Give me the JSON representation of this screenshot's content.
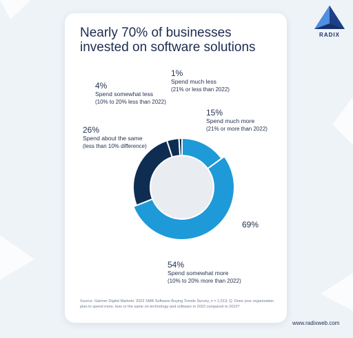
{
  "brand": {
    "name": "RADIX",
    "website": "www.radixweb.com"
  },
  "card": {
    "title": "Nearly 70% of businesses invested on software solutions",
    "source": "Source: Gartner Digital Markets' 2023 SMB Software Buying Trends Survey, n = 1,513; Q. Does your organization plan to spend more, less or the same on technology and software in 2023 compared to 2022?"
  },
  "chart_data": {
    "type": "pie",
    "donut": true,
    "total_label": "69%",
    "slices": [
      {
        "pct_label": "15%",
        "value": 15,
        "label": "Spend much more",
        "detail": "(21% or more than 2022)",
        "color": "#1e9ad8"
      },
      {
        "pct_label": "54%",
        "value": 54,
        "label": "Spend somewhat more",
        "detail": "(10% to 20% more than 2022)",
        "color": "#1e9ad8"
      },
      {
        "pct_label": "26%",
        "value": 26,
        "label": "Spend about the same",
        "detail": "(less than 10% difference)",
        "color": "#0f2d52"
      },
      {
        "pct_label": "4%",
        "value": 4,
        "label": "Spend somewhat less",
        "detail": "(10% to 20% less than 2022)",
        "color": "#0f2d52"
      },
      {
        "pct_label": "1%",
        "value": 1,
        "label": "Spend much less",
        "detail": "(21% or less than 2022)",
        "color": "#0f2d52"
      }
    ]
  },
  "colors": {
    "accent": "#1e9ad8",
    "dark": "#0f2d52",
    "background": "#eef3f8",
    "text": "#1c2b4f"
  },
  "icons": {
    "logo": "radix-logo-icon"
  }
}
